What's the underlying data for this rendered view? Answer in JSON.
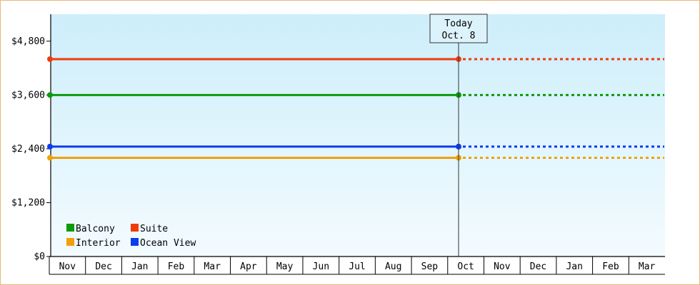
{
  "chart_data": {
    "type": "line",
    "title": "",
    "xlabel": "",
    "ylabel": "",
    "ylim": [
      0,
      5400
    ],
    "y_ticks": [
      "$0",
      "$1,200",
      "$2,400",
      "$3,600",
      "$4,800"
    ],
    "y_tick_values": [
      0,
      1200,
      2400,
      3600,
      4800
    ],
    "x_months": [
      "Nov",
      "Dec",
      "Jan",
      "Feb",
      "Mar",
      "Apr",
      "May",
      "Jun",
      "Jul",
      "Aug",
      "Sep",
      "Oct",
      "Nov",
      "Dec",
      "Jan",
      "Feb",
      "Mar"
    ],
    "today_marker": {
      "line1": "Today",
      "line2": "Oct. 8"
    },
    "grid": false,
    "legend_placement": "bottom-left",
    "series": [
      {
        "name": "Suite",
        "color": "#f03c0a",
        "value": 4400
      },
      {
        "name": "Balcony",
        "color": "#0d9a0d",
        "value": 3600
      },
      {
        "name": "Ocean View",
        "color": "#0a3cf0",
        "value": 2450
      },
      {
        "name": "Interior",
        "color": "#f0a00a",
        "value": 2200
      }
    ],
    "legend": [
      {
        "name": "Balcony",
        "color": "#0d9a0d"
      },
      {
        "name": "Suite",
        "color": "#f03c0a"
      },
      {
        "name": "Interior",
        "color": "#f0a00a"
      },
      {
        "name": "Ocean View",
        "color": "#0a3cf0"
      }
    ],
    "background_colors": [
      "#cdeefb",
      "#f3fbff"
    ]
  }
}
